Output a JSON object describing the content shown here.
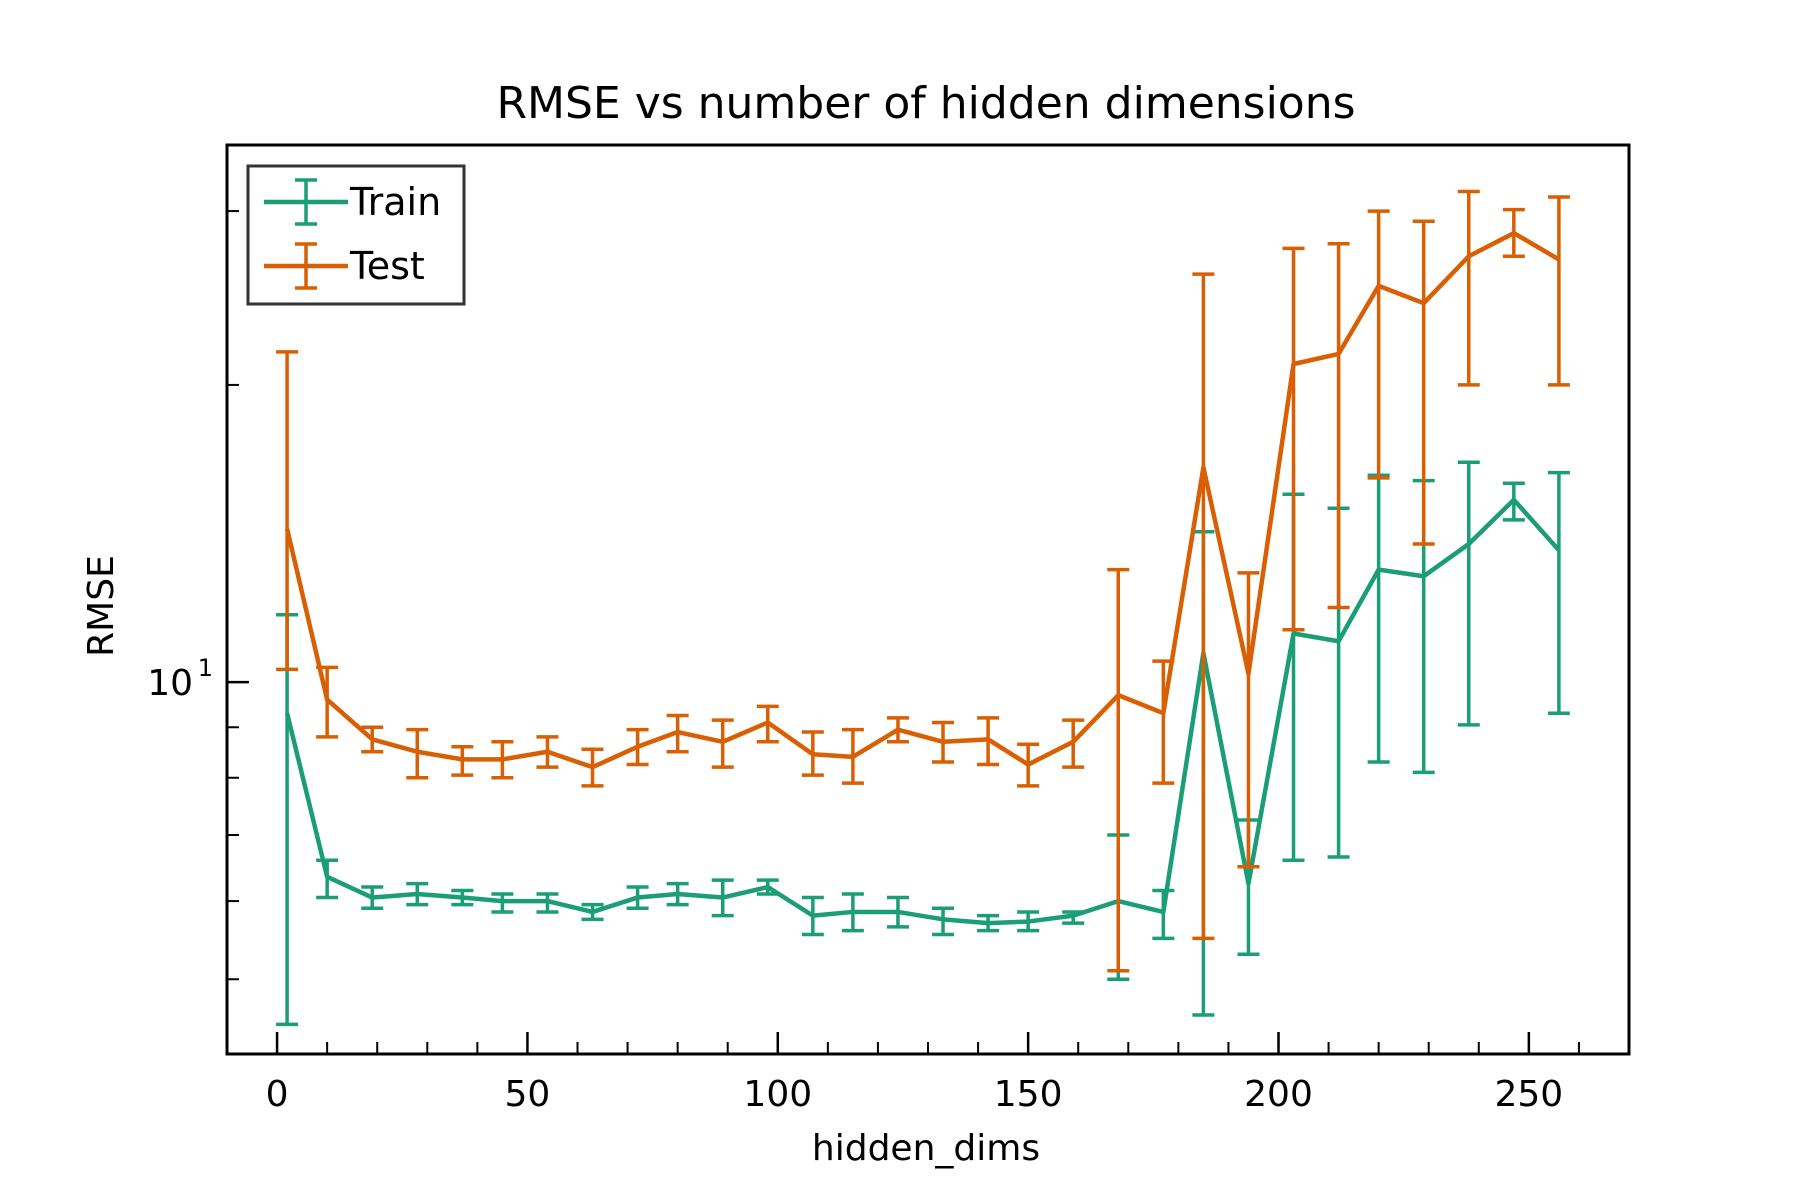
{
  "chart_data": {
    "type": "line",
    "title": "RMSE vs number of hidden dimensions",
    "xlabel": "hidden_dims",
    "ylabel": "RMSE",
    "y_scale": "log",
    "xlim": [
      -10,
      270
    ],
    "ylim": [
      4.2,
      35
    ],
    "x_ticks": [
      0,
      50,
      100,
      150,
      200,
      250
    ],
    "y_major_ticks": [
      {
        "value": 10,
        "base": "10",
        "exp": "1"
      }
    ],
    "grid": false,
    "legend": "top-left",
    "x": [
      2,
      10,
      19,
      28,
      37,
      45,
      54,
      63,
      72,
      80,
      89,
      98,
      107,
      115,
      124,
      133,
      142,
      150,
      159,
      168,
      177,
      185,
      194,
      203,
      212,
      220,
      229,
      238,
      247,
      256
    ],
    "series": [
      {
        "name": "Train",
        "color": "#1b9e77",
        "values": [
          9.3,
          6.35,
          6.05,
          6.1,
          6.05,
          6.0,
          6.0,
          5.85,
          6.05,
          6.1,
          6.05,
          6.2,
          5.8,
          5.85,
          5.85,
          5.75,
          5.7,
          5.72,
          5.8,
          6.0,
          5.85,
          10.7,
          6.25,
          11.2,
          11.0,
          13.0,
          12.8,
          13.8,
          15.3,
          13.6
        ],
        "err_low": [
          4.5,
          6.05,
          5.9,
          5.95,
          5.95,
          5.85,
          5.85,
          5.75,
          5.9,
          5.95,
          5.8,
          6.1,
          5.55,
          5.6,
          5.65,
          5.55,
          5.6,
          5.6,
          5.7,
          5.0,
          5.5,
          4.6,
          5.3,
          6.6,
          6.65,
          8.3,
          8.1,
          9.05,
          14.6,
          9.3
        ],
        "err_high": [
          11.7,
          6.6,
          6.2,
          6.25,
          6.15,
          6.1,
          6.1,
          5.95,
          6.2,
          6.25,
          6.3,
          6.3,
          6.05,
          6.1,
          6.05,
          5.9,
          5.8,
          5.85,
          5.85,
          7.0,
          6.15,
          14.2,
          7.25,
          15.5,
          15.0,
          16.2,
          16.0,
          16.7,
          15.9,
          16.3
        ]
      },
      {
        "name": "Test",
        "color": "#d95f02",
        "values": [
          14.3,
          9.6,
          8.75,
          8.5,
          8.35,
          8.35,
          8.5,
          8.2,
          8.6,
          8.9,
          8.7,
          9.1,
          8.45,
          8.4,
          8.95,
          8.7,
          8.75,
          8.25,
          8.7,
          9.7,
          9.3,
          16.5,
          10.2,
          21.0,
          21.5,
          25.2,
          24.2,
          27.0,
          28.5,
          26.8
        ],
        "err_low": [
          10.3,
          8.8,
          8.5,
          8.0,
          8.05,
          8.0,
          8.2,
          7.85,
          8.25,
          8.5,
          8.2,
          8.7,
          8.05,
          7.9,
          8.7,
          8.3,
          8.25,
          7.85,
          8.2,
          5.1,
          7.9,
          5.5,
          6.5,
          11.3,
          11.9,
          16.1,
          13.8,
          20.0,
          27.0,
          20.0
        ],
        "err_high": [
          21.6,
          10.35,
          9.0,
          8.95,
          8.6,
          8.7,
          8.8,
          8.55,
          8.95,
          9.25,
          9.15,
          9.45,
          8.9,
          8.95,
          9.2,
          9.1,
          9.2,
          8.65,
          9.15,
          13.0,
          10.5,
          25.9,
          12.9,
          27.5,
          27.8,
          30.0,
          29.3,
          31.4,
          30.1,
          31.0
        ]
      }
    ]
  }
}
